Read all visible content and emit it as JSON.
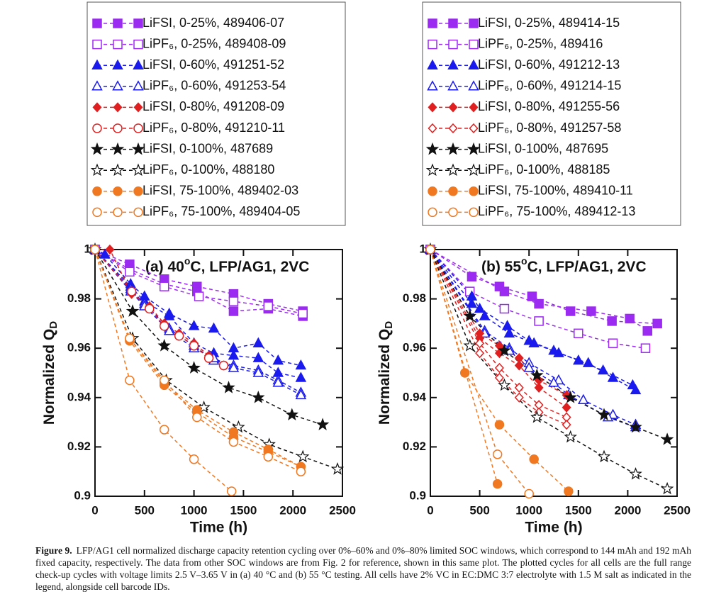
{
  "chart_data": [
    {
      "type": "line",
      "title": [
        "(a) 40",
        "o",
        "C, LFP/AG1, 2VC"
      ],
      "x_label": "Time (h)",
      "y_label": {
        "text": "Normalized Q",
        "subscript": "D"
      },
      "xlim": [
        0,
        2500
      ],
      "ylim": [
        0.9,
        1
      ],
      "xticks": [
        0,
        500,
        1000,
        1500,
        2000,
        2500
      ],
      "yticks": [
        0.9,
        0.92,
        0.94,
        0.96,
        0.98,
        1
      ],
      "series": [
        {
          "name": "LiFSI, 0-25%, 489406-07",
          "color": "#9b2bf0",
          "marker": "square",
          "filled": true,
          "cells": [
            {
              "x": [
                0,
                350,
                700,
                1030,
                1400,
                1750,
                2100
              ],
              "values": [
                1,
                0.994,
                0.988,
                0.985,
                0.982,
                0.978,
                0.975
              ]
            },
            {
              "x": [
                0,
                350,
                700,
                1030,
                1400,
                1750,
                2100
              ],
              "values": [
                1,
                0.992,
                0.986,
                0.983,
                0.975,
                0.976,
                0.973
              ]
            }
          ]
        },
        {
          "name": "LiPF₆, 0-25%, 489408-09",
          "color": "#9b2bf0",
          "marker": "square",
          "filled": false,
          "cells": [
            {
              "x": [
                0,
                350,
                700,
                1050,
                1400,
                1750,
                2100
              ],
              "values": [
                1,
                0.991,
                0.985,
                0.981,
                0.979,
                0.977,
                0.974
              ]
            }
          ]
        },
        {
          "name": "LiFSI, 0-60%, 491251-52",
          "color": "#1a1aee",
          "marker": "triangle",
          "filled": true,
          "cells": [
            {
              "x": [
                0,
                100,
                360,
                500,
                750,
                1000,
                1200,
                1400,
                1650,
                1850,
                2080
              ],
              "values": [
                1,
                0.998,
                0.986,
                0.981,
                0.974,
                0.969,
                0.968,
                0.96,
                0.962,
                0.955,
                0.953
              ]
            },
            {
              "x": [
                0,
                360,
                500,
                750,
                1000,
                1200,
                1400,
                1650,
                1850,
                2080
              ],
              "values": [
                1,
                0.985,
                0.979,
                0.973,
                0.962,
                0.958,
                0.957,
                0.956,
                0.95,
                0.948
              ]
            }
          ]
        },
        {
          "name": "LiPF₆, 0-60%, 491253-54",
          "color": "#1a1aee",
          "marker": "triangle",
          "filled": false,
          "cells": [
            {
              "x": [
                0,
                360,
                500,
                750,
                1000,
                1200,
                1400,
                1650,
                1850,
                2080
              ],
              "values": [
                1,
                0.984,
                0.978,
                0.968,
                0.961,
                0.955,
                0.953,
                0.951,
                0.947,
                0.942
              ]
            },
            {
              "x": [
                0,
                360,
                500,
                750,
                1000,
                1200,
                1400,
                1650,
                1850,
                2080
              ],
              "values": [
                1,
                0.983,
                0.977,
                0.967,
                0.96,
                0.956,
                0.952,
                0.95,
                0.946,
                0.941
              ]
            }
          ]
        },
        {
          "name": "LiFSI, 0-80%, 491208-09",
          "color": "#e02020",
          "marker": "diamond",
          "filled": true,
          "cells": [
            {
              "x": [
                0,
                150,
                370,
                550,
                700,
                850,
                1000,
                1150,
                1300
              ],
              "values": [
                1,
                1,
                0.982,
                0.977,
                0.97,
                0.966,
                0.962,
                0.957,
                0.953
              ]
            }
          ]
        },
        {
          "name": "LiPF₆, 0-80%, 491210-11",
          "color": "#e02020",
          "marker": "circle",
          "filled": false,
          "cells": [
            {
              "x": [
                0,
                370,
                550,
                700,
                850,
                1000,
                1150,
                1300
              ],
              "values": [
                1,
                0.983,
                0.976,
                0.969,
                0.965,
                0.961,
                0.956,
                0.953
              ]
            }
          ]
        },
        {
          "name": "LiFSI, 0-100%, 487689",
          "color": "#111111",
          "marker": "star",
          "filled": true,
          "cells": [
            {
              "x": [
                0,
                380,
                700,
                1000,
                1350,
                1650,
                1990,
                2300
              ],
              "values": [
                1,
                0.975,
                0.961,
                0.952,
                0.944,
                0.94,
                0.933,
                0.929
              ]
            }
          ]
        },
        {
          "name": "LiPF₆, 0-100%, 488180",
          "color": "#111111",
          "marker": "star",
          "filled": false,
          "cells": [
            {
              "x": [
                0,
                380,
                720,
                1100,
                1450,
                1760,
                2100,
                2450
              ],
              "values": [
                1,
                0.964,
                0.947,
                0.936,
                0.928,
                0.921,
                0.916,
                0.911
              ]
            }
          ]
        },
        {
          "name": "LiFSI, 75-100%, 489402-03",
          "color": "#f07820",
          "marker": "circle",
          "filled": true,
          "cells": [
            {
              "x": [
                0,
                350,
                700,
                1030,
                1400,
                1750,
                2080
              ],
              "values": [
                1,
                0.964,
                0.946,
                0.935,
                0.926,
                0.919,
                0.912
              ]
            },
            {
              "x": [
                0,
                350,
                700,
                1030,
                1400,
                1750,
                2080
              ],
              "values": [
                1,
                0.963,
                0.945,
                0.934,
                0.924,
                0.918,
                0.912
              ]
            }
          ]
        },
        {
          "name": "LiPF₆, 75-100%, 489404-05",
          "color": "#f07820",
          "marker": "circle",
          "filled": false,
          "cells": [
            {
              "x": [
                0,
                350,
                700,
                1000,
                1380
              ],
              "values": [
                1,
                0.947,
                0.927,
                0.915,
                0.902
              ]
            },
            {
              "x": [
                0,
                350,
                700,
                1030,
                1400,
                1750,
                2080
              ],
              "values": [
                1,
                0.964,
                0.947,
                0.932,
                0.922,
                0.916,
                0.91
              ]
            }
          ]
        }
      ]
    },
    {
      "type": "line",
      "title": [
        "(b) 55",
        "o",
        "C, LFP/AG1, 2VC"
      ],
      "x_label": "Time (h)",
      "y_label": {
        "text": "Normalized Q",
        "subscript": "D"
      },
      "xlim": [
        0,
        2500
      ],
      "ylim": [
        0.9,
        1
      ],
      "xticks": [
        0,
        500,
        1000,
        1500,
        2000,
        2500
      ],
      "yticks": [
        0.9,
        0.92,
        0.94,
        0.96,
        0.98,
        1
      ],
      "series": [
        {
          "name": "LiFSI, 0-25%, 489414-15",
          "color": "#9b2bf0",
          "marker": "square",
          "filled": true,
          "cells": [
            {
              "x": [
                0,
                420,
                700,
                1030,
                1420,
                1840,
                2300
              ],
              "values": [
                1,
                0.989,
                0.985,
                0.981,
                0.975,
                0.971,
                0.97
              ]
            },
            {
              "x": [
                0,
                750,
                1100,
                1630,
                2020,
                2200
              ],
              "values": [
                1,
                0.983,
                0.978,
                0.975,
                0.972,
                0.967
              ]
            }
          ]
        },
        {
          "name": "LiPF₆, 0-25%, 489416",
          "color": "#9b2bf0",
          "marker": "square",
          "filled": false,
          "cells": [
            {
              "x": [
                0,
                400,
                750,
                1100,
                1500,
                1850,
                2180
              ],
              "values": [
                1,
                0.983,
                0.976,
                0.971,
                0.966,
                0.962,
                0.96
              ]
            }
          ]
        },
        {
          "name": "LiFSI, 0-60%, 491212-13",
          "color": "#1a1aee",
          "marker": "triangle",
          "filled": true,
          "cells": [
            {
              "x": [
                0,
                420,
                500,
                780,
                1000,
                1250,
                1500,
                1750,
                2050
              ],
              "values": [
                1,
                0.981,
                0.976,
                0.969,
                0.963,
                0.959,
                0.955,
                0.951,
                0.945
              ]
            },
            {
              "x": [
                0,
                420,
                550,
                800,
                1050,
                1300,
                1600,
                1850,
                2080
              ],
              "values": [
                1,
                0.978,
                0.973,
                0.966,
                0.962,
                0.958,
                0.954,
                0.948,
                0.943
              ]
            }
          ]
        },
        {
          "name": "LiPF₆, 0-60%, 491214-15",
          "color": "#1a1aee",
          "marker": "triangle",
          "filled": false,
          "cells": [
            {
              "x": [
                0,
                550,
                800,
                1000,
                1300,
                1550,
                1850,
                2080
              ],
              "values": [
                1,
                0.967,
                0.96,
                0.954,
                0.947,
                0.939,
                0.933,
                0.929
              ]
            },
            {
              "x": [
                0,
                550,
                800,
                1000,
                1250,
                1400,
                1800,
                2080
              ],
              "values": [
                1,
                0.966,
                0.959,
                0.952,
                0.946,
                0.941,
                0.932,
                0.928
              ]
            }
          ]
        },
        {
          "name": "LiFSI, 0-80%, 491255-56",
          "color": "#e02020",
          "marker": "diamond",
          "filled": true,
          "cells": [
            {
              "x": [
                0,
                500,
                700,
                900,
                1100,
                1380
              ],
              "values": [
                1,
                0.966,
                0.961,
                0.956,
                0.947,
                0.941
              ]
            },
            {
              "x": [
                0,
                500,
                700,
                900,
                1100,
                1380
              ],
              "values": [
                1,
                0.964,
                0.958,
                0.953,
                0.944,
                0.936
              ]
            }
          ]
        },
        {
          "name": "LiPF₆, 0-80%, 491257-58",
          "color": "#e02020",
          "marker": "diamond",
          "filled": false,
          "cells": [
            {
              "x": [
                0,
                500,
                700,
                900,
                1100,
                1380
              ],
              "values": [
                1,
                0.962,
                0.952,
                0.944,
                0.937,
                0.932
              ]
            },
            {
              "x": [
                0,
                500,
                700,
                900,
                1100,
                1380
              ],
              "values": [
                1,
                0.958,
                0.948,
                0.94,
                0.934,
                0.929
              ]
            }
          ]
        },
        {
          "name": "LiFSI, 0-100%, 487695",
          "color": "#111111",
          "marker": "star",
          "filled": true,
          "cells": [
            {
              "x": [
                0,
                400,
                750,
                1080,
                1420,
                1760,
                2080,
                2400
              ],
              "values": [
                1,
                0.973,
                0.959,
                0.949,
                0.94,
                0.933,
                0.928,
                0.923
              ]
            }
          ]
        },
        {
          "name": "LiPF₆, 0-100%, 488185",
          "color": "#111111",
          "marker": "star",
          "filled": false,
          "cells": [
            {
              "x": [
                0,
                400,
                750,
                1080,
                1420,
                1760,
                2080,
                2400
              ],
              "values": [
                1,
                0.961,
                0.945,
                0.932,
                0.924,
                0.916,
                0.909,
                0.903
              ]
            }
          ]
        },
        {
          "name": "LiFSI, 75-100%, 489410-11",
          "color": "#f07820",
          "marker": "circle",
          "filled": true,
          "cells": [
            {
              "x": [
                0,
                350,
                700,
                1050,
                1400
              ],
              "values": [
                1,
                0.95,
                0.929,
                0.915,
                0.902
              ]
            },
            {
              "x": [
                0,
                680
              ],
              "values": [
                1,
                0.905
              ]
            }
          ]
        },
        {
          "name": "LiPF₆, 75-100%, 489412-13",
          "color": "#f07820",
          "marker": "circle",
          "filled": false,
          "cells": [
            {
              "x": [
                0,
                680,
                1000
              ],
              "values": [
                1,
                0.917,
                0.901
              ]
            }
          ]
        }
      ]
    }
  ],
  "caption": {
    "label": "Figure 9.",
    "text": "LFP/AG1 cell normalized discharge capacity retention cycling over 0%–60% and 0%–80% limited SOC windows, which correspond to 144 mAh and 192 mAh fixed capacity, respectively. The data from other SOC windows are from Fig. 2 for reference, shown in this same plot. The plotted cycles for all cells are the full range check-up cycles with voltage limits 2.5 V–3.65 V in (a) 40 °C and (b) 55 °C testing. All cells have 2% VC in EC:DMC 3:7 electrolyte with 1.5 M salt as indicated in the legend, alongside cell barcode IDs."
  }
}
